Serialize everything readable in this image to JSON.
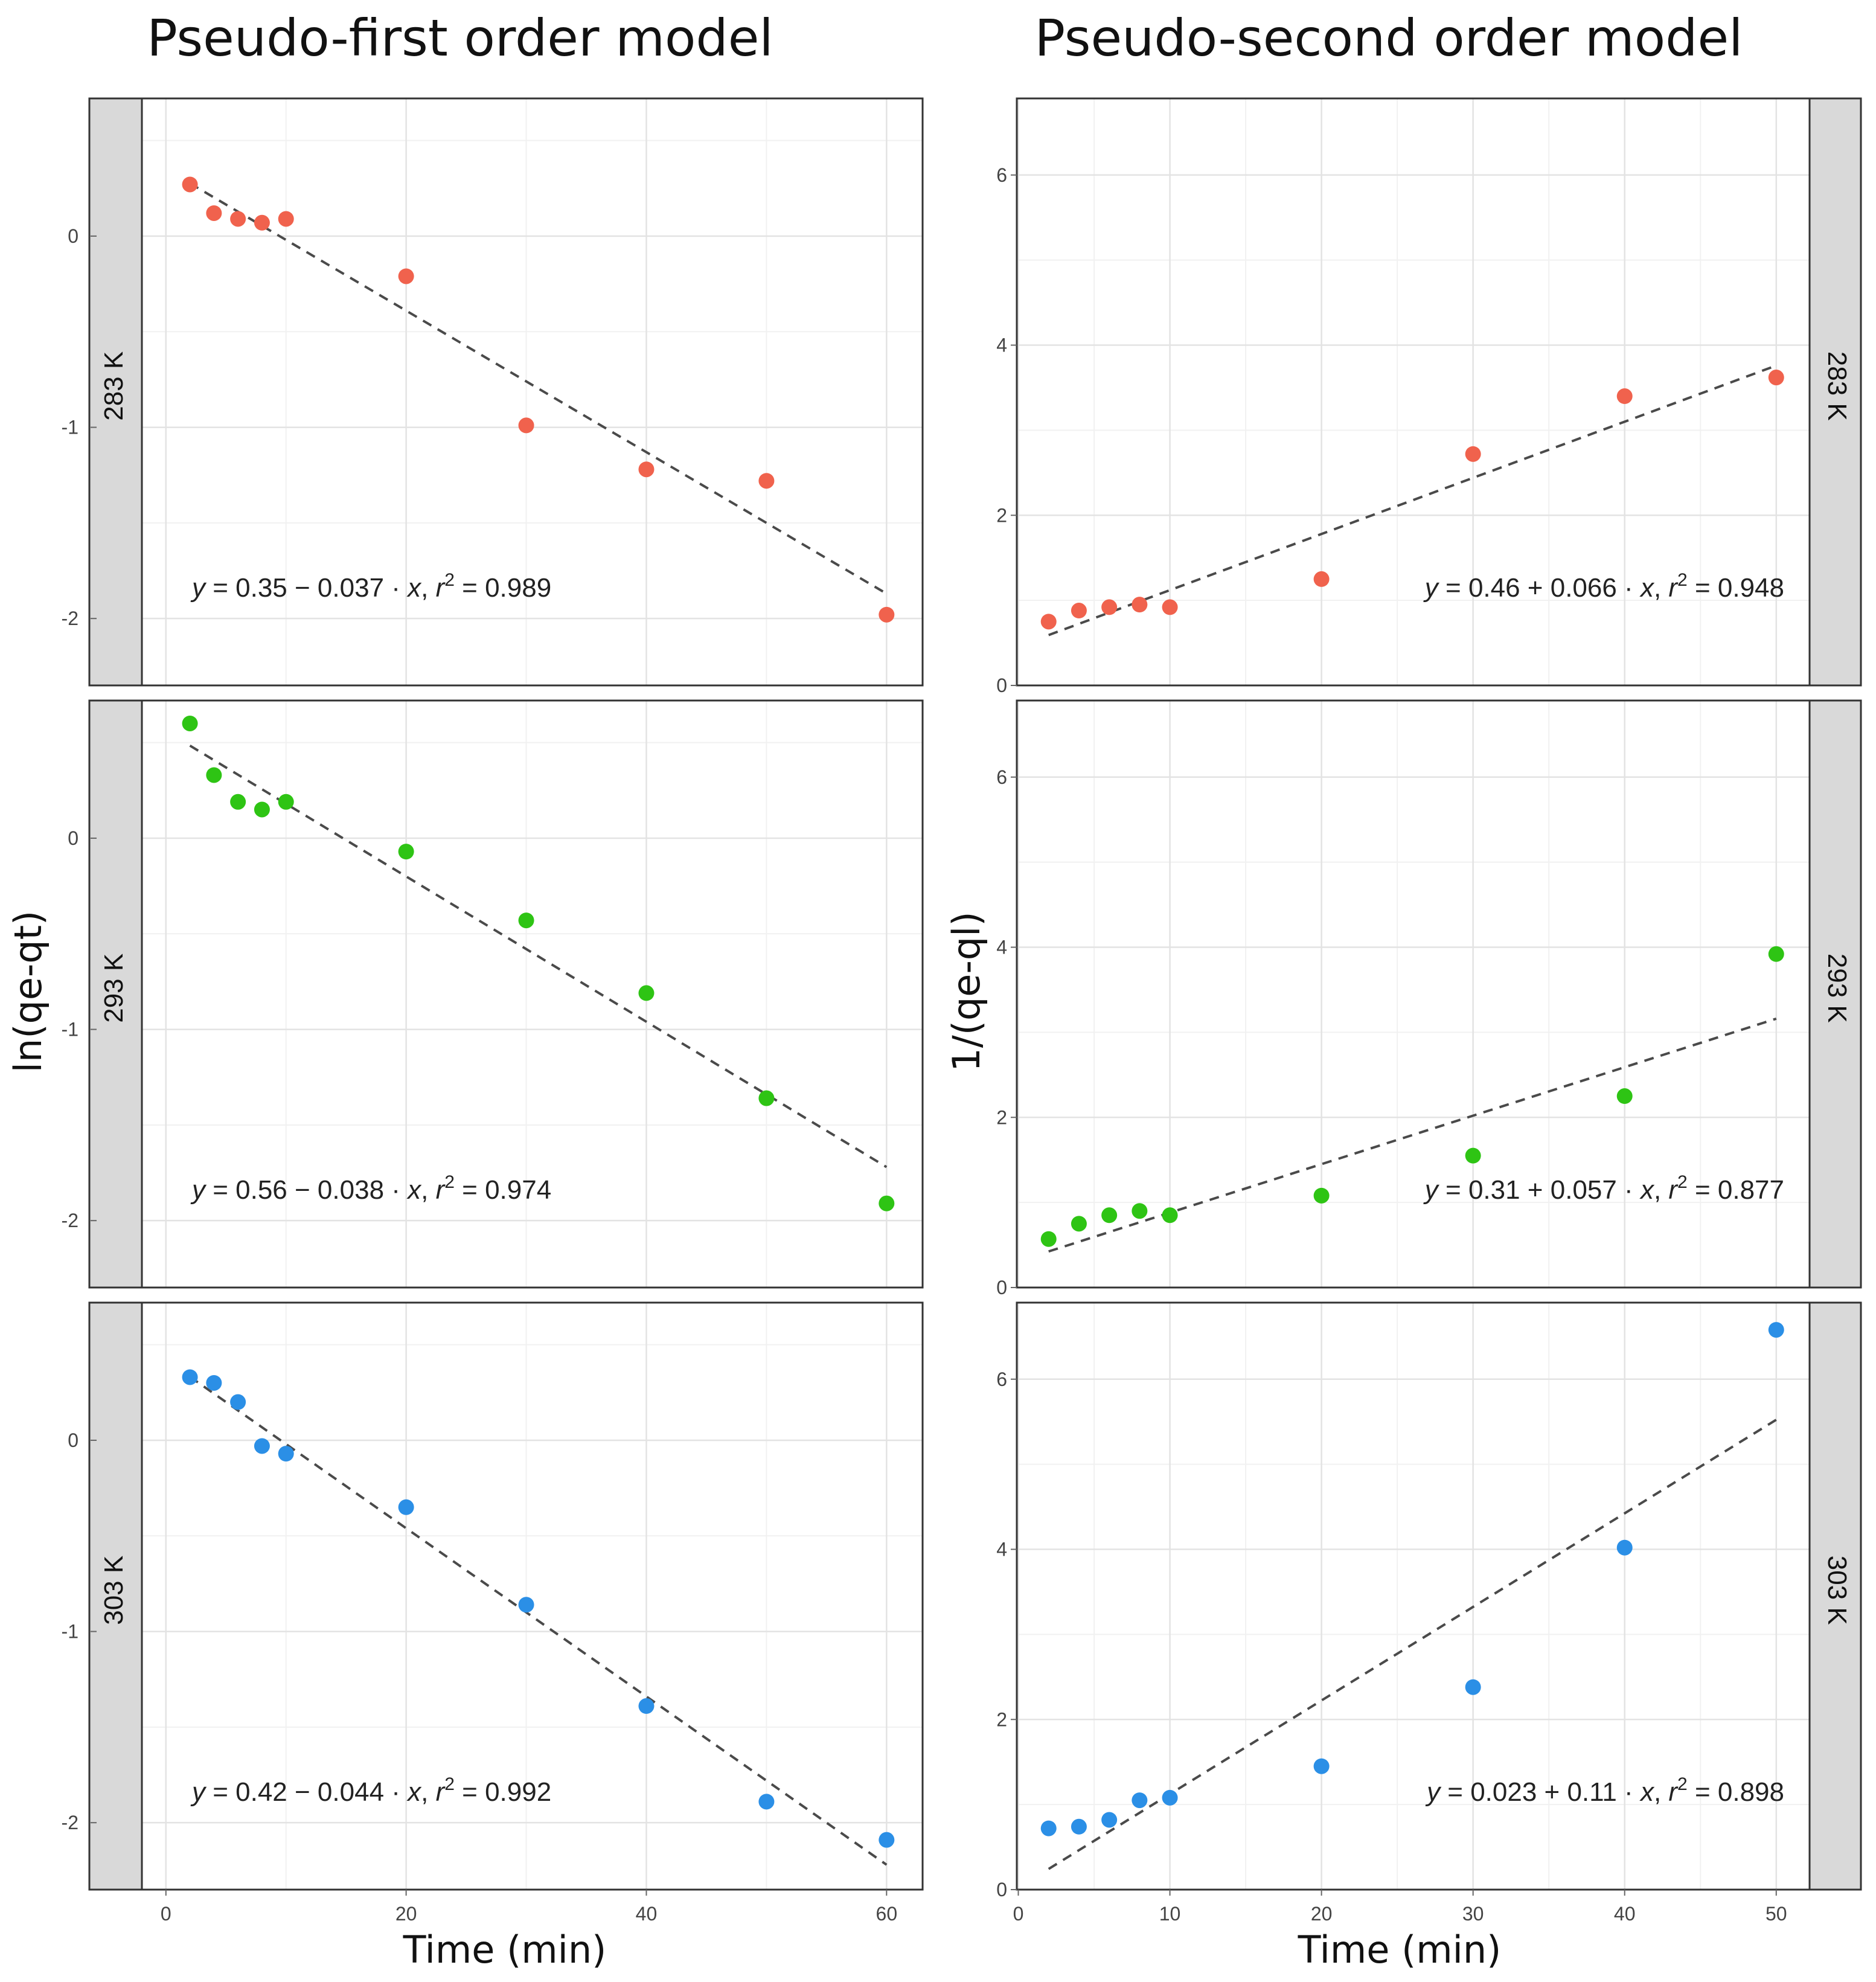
{
  "figure": {
    "left_title": "Pseudo-first order model",
    "right_title": "Pseudo-second order model",
    "left_ylabel": "ln(qe-qt)",
    "right_ylabel": "1/(qe-ql)",
    "left_xlabel": "Time (min)",
    "right_xlabel": "Time (min)",
    "colors": {
      "283 K": "#f0624d",
      "293 K": "#2ec414",
      "303 K": "#2b8fe6",
      "fit": "#4a4a4a",
      "strip": "#d9d9d9"
    }
  },
  "chart_data": [
    {
      "id": "pfo-283",
      "type": "scatter",
      "model": "Pseudo-first order model",
      "panel": "283 K",
      "xlabel": "Time (min)",
      "ylabel": "ln(qe-qt)",
      "x": [
        2,
        4,
        6,
        8,
        10,
        20,
        30,
        40,
        50,
        60
      ],
      "y": [
        0.27,
        0.12,
        0.09,
        0.07,
        0.09,
        -0.21,
        -0.99,
        -1.22,
        -1.28,
        -1.98
      ],
      "fit": {
        "intercept": 0.35,
        "slope": -0.037,
        "x_range": [
          2,
          60
        ]
      },
      "equation": {
        "prefix": "y",
        "body": " = 0.35 − 0.037 · ",
        "var": "x",
        "sep": ",  ",
        "r": "r",
        "exp": "2",
        "r2": " = 0.989"
      },
      "xlim": [
        -2,
        63
      ],
      "ylim": [
        -2.35,
        0.72
      ],
      "yticks": [
        0,
        -1,
        -2
      ],
      "ytick_labels": [
        "0",
        "-1",
        "-2"
      ],
      "xticks": [
        0,
        20,
        40,
        60
      ],
      "xtick_labels": [
        "0",
        "20",
        "40",
        "60"
      ]
    },
    {
      "id": "pfo-293",
      "type": "scatter",
      "model": "Pseudo-first order model",
      "panel": "293 K",
      "xlabel": "Time (min)",
      "ylabel": "ln(qe-qt)",
      "x": [
        2,
        4,
        6,
        8,
        10,
        20,
        30,
        40,
        50,
        60
      ],
      "y": [
        0.6,
        0.33,
        0.19,
        0.15,
        0.19,
        -0.07,
        -0.43,
        -0.81,
        -1.36,
        -1.91
      ],
      "fit": {
        "intercept": 0.56,
        "slope": -0.038,
        "x_range": [
          2,
          60
        ]
      },
      "equation": {
        "prefix": "y",
        "body": " = 0.56 − 0.038 · ",
        "var": "x",
        "sep": ",  ",
        "r": "r",
        "exp": "2",
        "r2": " = 0.974"
      },
      "xlim": [
        -2,
        63
      ],
      "ylim": [
        -2.35,
        0.72
      ],
      "yticks": [
        0,
        -1,
        -2
      ],
      "ytick_labels": [
        "0",
        "-1",
        "-2"
      ],
      "xticks": [
        0,
        20,
        40,
        60
      ],
      "xtick_labels": [
        "0",
        "20",
        "40",
        "60"
      ]
    },
    {
      "id": "pfo-303",
      "type": "scatter",
      "model": "Pseudo-first order model",
      "panel": "303 K",
      "xlabel": "Time (min)",
      "ylabel": "ln(qe-qt)",
      "x": [
        2,
        4,
        6,
        8,
        10,
        20,
        30,
        40,
        50,
        60
      ],
      "y": [
        0.33,
        0.3,
        0.2,
        -0.03,
        -0.07,
        -0.35,
        -0.86,
        -1.39,
        -1.89,
        -2.09
      ],
      "fit": {
        "intercept": 0.42,
        "slope": -0.044,
        "x_range": [
          2,
          60
        ]
      },
      "equation": {
        "prefix": "y",
        "body": " = 0.42 − 0.044 · ",
        "var": "x",
        "sep": ",  ",
        "r": "r",
        "exp": "2",
        "r2": " = 0.992"
      },
      "xlim": [
        -2,
        63
      ],
      "ylim": [
        -2.35,
        0.72
      ],
      "yticks": [
        0,
        -1,
        -2
      ],
      "ytick_labels": [
        "0",
        "-1",
        "-2"
      ],
      "xticks": [
        0,
        20,
        40,
        60
      ],
      "xtick_labels": [
        "0",
        "20",
        "40",
        "60"
      ]
    },
    {
      "id": "pso-283",
      "type": "scatter",
      "model": "Pseudo-second order model",
      "panel": "283 K",
      "xlabel": "Time (min)",
      "ylabel": "1/(qe-ql)",
      "x": [
        2,
        4,
        6,
        8,
        10,
        20,
        30,
        40,
        50
      ],
      "y": [
        0.75,
        0.88,
        0.92,
        0.95,
        0.92,
        1.25,
        2.72,
        3.4,
        3.62
      ],
      "fit": {
        "intercept": 0.46,
        "slope": 0.066,
        "x_range": [
          2,
          50
        ]
      },
      "equation": {
        "prefix": "y",
        "body": " = 0.46 + 0.066 · ",
        "var": "x",
        "sep": ",  ",
        "r": "r",
        "exp": "2",
        "r2": " = 0.948"
      },
      "xlim": [
        -0.1,
        52.2
      ],
      "ylim": [
        0,
        6.9
      ],
      "yticks": [
        0,
        2,
        4,
        6
      ],
      "ytick_labels": [
        "0",
        "2",
        "4",
        "6"
      ],
      "xticks": [
        0,
        10,
        20,
        30,
        40,
        50
      ],
      "xtick_labels": [
        "0",
        "10",
        "20",
        "30",
        "40",
        "50"
      ]
    },
    {
      "id": "pso-293",
      "type": "scatter",
      "model": "Pseudo-second order model",
      "panel": "293 K",
      "xlabel": "Time (min)",
      "ylabel": "1/(qe-ql)",
      "x": [
        2,
        4,
        6,
        8,
        10,
        20,
        30,
        40,
        50
      ],
      "y": [
        0.57,
        0.75,
        0.85,
        0.9,
        0.85,
        1.08,
        1.55,
        2.25,
        3.92
      ],
      "fit": {
        "intercept": 0.31,
        "slope": 0.057,
        "x_range": [
          2,
          50
        ]
      },
      "equation": {
        "prefix": "y",
        "body": " = 0.31 + 0.057 · ",
        "var": "x",
        "sep": ",  ",
        "r": "r",
        "exp": "2",
        "r2": " = 0.877"
      },
      "xlim": [
        -0.1,
        52.2
      ],
      "ylim": [
        0,
        6.9
      ],
      "yticks": [
        0,
        2,
        4,
        6
      ],
      "ytick_labels": [
        "0",
        "2",
        "4",
        "6"
      ],
      "xticks": [
        0,
        10,
        20,
        30,
        40,
        50
      ],
      "xtick_labels": [
        "0",
        "10",
        "20",
        "30",
        "40",
        "50"
      ]
    },
    {
      "id": "pso-303",
      "type": "scatter",
      "model": "Pseudo-second order model",
      "panel": "303 K",
      "xlabel": "Time (min)",
      "ylabel": "1/(qe-ql)",
      "x": [
        2,
        4,
        6,
        8,
        10,
        20,
        30,
        40,
        50
      ],
      "y": [
        0.72,
        0.74,
        0.82,
        1.05,
        1.08,
        1.45,
        2.38,
        4.02,
        6.58
      ],
      "fit": {
        "intercept": 0.023,
        "slope": 0.11,
        "x_range": [
          2,
          50
        ]
      },
      "equation": {
        "prefix": "y",
        "body": " = 0.023 + 0.11 · ",
        "var": "x",
        "sep": ",  ",
        "r": "r",
        "exp": "2",
        "r2": " = 0.898"
      },
      "xlim": [
        -0.1,
        52.2
      ],
      "ylim": [
        0,
        6.9
      ],
      "yticks": [
        0,
        2,
        4,
        6
      ],
      "ytick_labels": [
        "0",
        "2",
        "4",
        "6"
      ],
      "xticks": [
        0,
        10,
        20,
        30,
        40,
        50
      ],
      "xtick_labels": [
        "0",
        "10",
        "20",
        "30",
        "40",
        "50"
      ]
    }
  ]
}
